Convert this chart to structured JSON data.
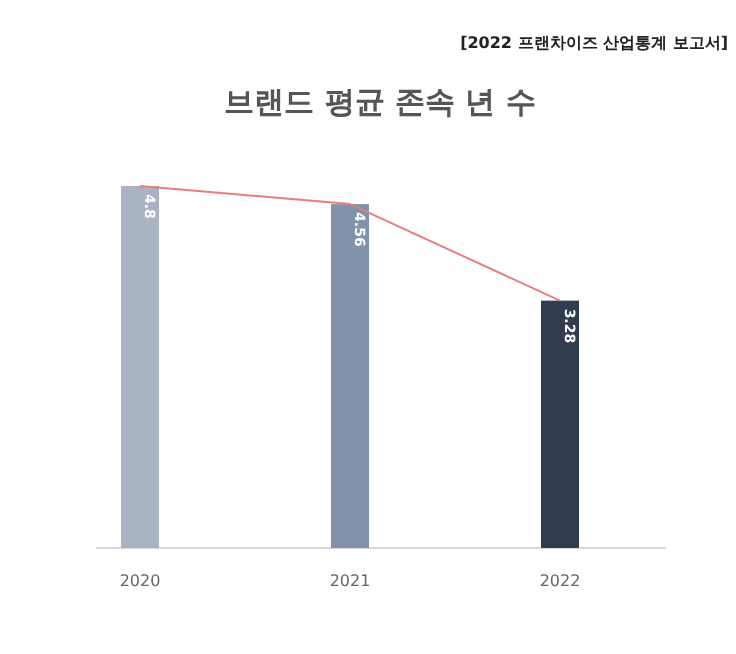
{
  "chart_data": {
    "type": "bar",
    "title": "브랜드 평균 존속 년 수",
    "annotations": [
      "[2022 프랜차이즈 산업통계 보고서]"
    ],
    "categories": [
      "2020",
      "2021",
      "2022"
    ],
    "ylim": [
      0,
      4.8
    ],
    "series": [
      {
        "values": [
          4.8,
          4.56,
          3.28
        ],
        "value_labels": [
          "4.8",
          "4.56",
          "3.28"
        ],
        "colors": [
          "#a9b3c4",
          "#8193aa",
          "#323c4f"
        ]
      },
      {
        "type": "line",
        "values": [
          4.8,
          4.56,
          3.28
        ],
        "color": "#e87d7d"
      }
    ]
  }
}
